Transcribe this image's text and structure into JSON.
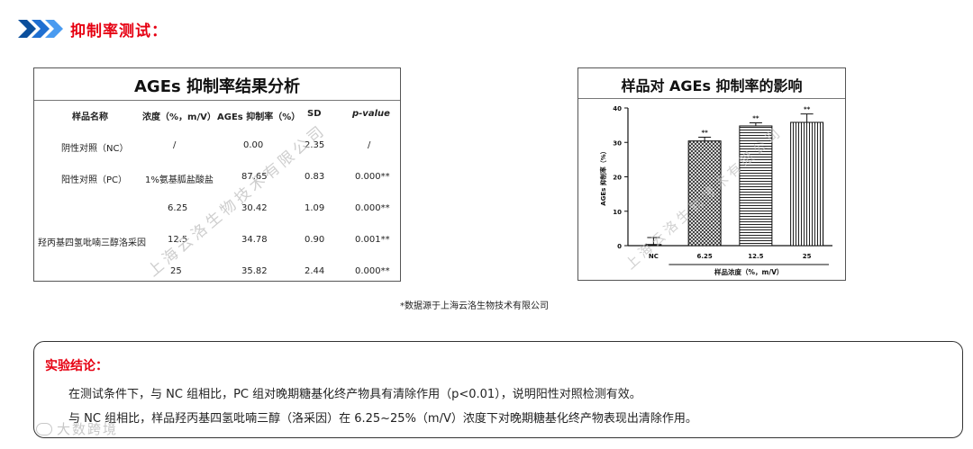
{
  "header": {
    "title": "抑制率测试："
  },
  "table": {
    "title": "AGEs 抑制率结果分析",
    "columns": [
      "样品名称",
      "浓度（%，m/V）",
      "AGEs 抑制率（%）",
      "SD",
      "p-value"
    ],
    "rows": [
      {
        "name": "阴性对照（NC）",
        "conc": "/",
        "rate": "0.00",
        "sd": "2.35",
        "p": "/"
      },
      {
        "name": "阳性对照（PC）",
        "conc": "1%氨基胍盐酸盐",
        "rate": "87.65",
        "sd": "0.83",
        "p": "0.000**"
      },
      {
        "name": "",
        "conc": "6.25",
        "rate": "30.42",
        "sd": "1.09",
        "p": "0.000**"
      },
      {
        "name": "羟丙基四氢吡喃三醇洛采因",
        "conc": "12.5",
        "rate": "34.78",
        "sd": "0.90",
        "p": "0.001**"
      },
      {
        "name": "",
        "conc": "25",
        "rate": "35.82",
        "sd": "2.44",
        "p": "0.000**"
      }
    ],
    "watermark": "上海云洛生物技术有限公司"
  },
  "chart_data": {
    "type": "bar",
    "title": "样品对 AGEs 抑制率的影响",
    "categories": [
      "NC",
      "6.25",
      "12.5",
      "25"
    ],
    "values": [
      0.0,
      30.42,
      34.78,
      35.82
    ],
    "errors": [
      2.35,
      1.09,
      0.9,
      2.44
    ],
    "significance": [
      "",
      "**",
      "**",
      "**"
    ],
    "xlabel": "样品浓度（%，m/V）",
    "ylabel": "AGEs 抑制率（%）",
    "ylim": [
      0,
      40
    ],
    "yticks": [
      0,
      10,
      20,
      30,
      40
    ],
    "patterns": [
      "none",
      "crosshatch",
      "horizontal-lines",
      "vertical-lines"
    ],
    "watermark": "上海云洛生物技术有限公司"
  },
  "source_note": "*数据源于上海云洛生物技术有限公司",
  "conclusion": {
    "title": "实验结论：",
    "lines": [
      "在测试条件下，与 NC 组相比，PC 组对晚期糖基化终产物具有清除作用（p<0.01），说明阳性对照检测有效。",
      "与 NC 组相比，样品羟丙基四氢吡喃三醇（洛采因）在 6.25~25%（m/V）浓度下对晚期糖基化终产物表现出清除作用。"
    ]
  },
  "watermark_logo": "大数跨境",
  "colors": {
    "accent_red": "#e60012",
    "chevron_blue": "#1f6fd1"
  }
}
